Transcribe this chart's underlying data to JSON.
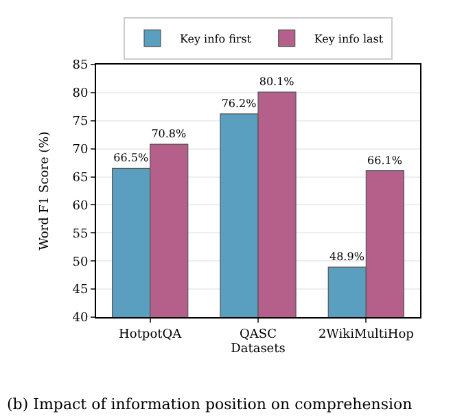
{
  "chart_data": {
    "type": "bar",
    "xlabel": "Datasets",
    "ylabel": "Word F1 Score (%)",
    "categories": [
      "HotpotQA",
      "QASC",
      "2WikiMultiHop"
    ],
    "series": [
      {
        "name": "Key info first",
        "color": "#5a9fc0",
        "values": [
          66.5,
          76.2,
          48.9
        ],
        "value_labels": [
          "66.5%",
          "76.2%",
          "48.9%"
        ]
      },
      {
        "name": "Key info last",
        "color": "#b5608a",
        "values": [
          70.8,
          80.1,
          66.1
        ],
        "value_labels": [
          "70.8%",
          "80.1%",
          "66.1%"
        ]
      }
    ],
    "ylim": [
      40,
      85
    ],
    "yticks": [
      40,
      45,
      50,
      55,
      60,
      65,
      70,
      75,
      80,
      85
    ],
    "grid": "y",
    "legend": "top",
    "annotations": [
      "(b) Impact of information position on comprehension"
    ]
  }
}
